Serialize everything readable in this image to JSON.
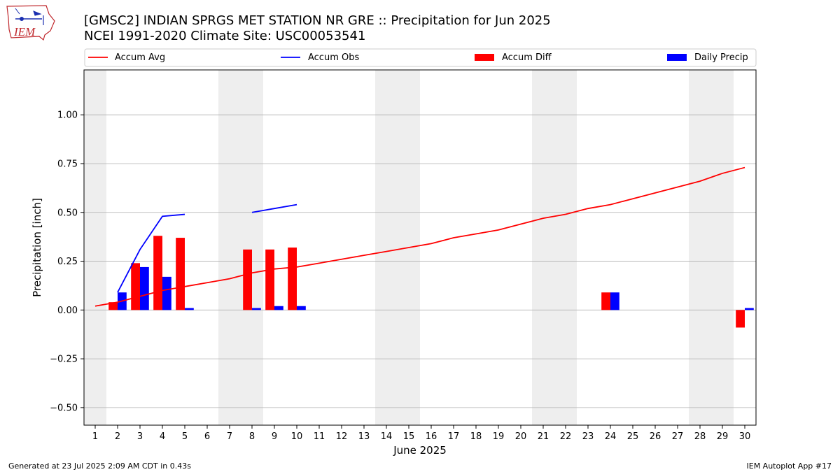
{
  "header": {
    "title_line1": "[GMSC2] INDIAN  SPRGS MET STATION NR GRE :: Precipitation for Jun 2025",
    "title_line2": "NCEI 1991-2020 Climate Site: USC00053541"
  },
  "logo": {
    "text": "IEM"
  },
  "footer": {
    "left": "Generated at 23 Jul 2025 2:09 AM CDT in 0.43s",
    "right": "IEM Autoplot App #17"
  },
  "colors": {
    "avg": "#ff0000",
    "obs": "#0000ff",
    "diff": "#ff0000",
    "daily": "#0000ff",
    "weekend": "#eeeeee",
    "grid": "#b0b0b0"
  },
  "chart_data": {
    "type": "bar",
    "xlabel": "June 2025",
    "ylabel": "Precipitation [inch]",
    "ylim": [
      -0.59,
      1.23
    ],
    "xlim": [
      0.5,
      30.5
    ],
    "grid": true,
    "legend_position": "top",
    "x": [
      1,
      2,
      3,
      4,
      5,
      6,
      7,
      8,
      9,
      10,
      11,
      12,
      13,
      14,
      15,
      16,
      17,
      18,
      19,
      20,
      21,
      22,
      23,
      24,
      25,
      26,
      27,
      28,
      29,
      30
    ],
    "xticks": [
      "1",
      "2",
      "3",
      "4",
      "5",
      "6",
      "7",
      "8",
      "9",
      "10",
      "11",
      "12",
      "13",
      "14",
      "15",
      "16",
      "17",
      "18",
      "19",
      "20",
      "21",
      "22",
      "23",
      "24",
      "25",
      "26",
      "27",
      "28",
      "29",
      "30"
    ],
    "yticks": [
      -0.5,
      -0.25,
      0.0,
      0.25,
      0.5,
      0.75,
      1.0
    ],
    "ytick_labels": [
      "−0.50",
      "−0.25",
      "0.00",
      "0.25",
      "0.50",
      "0.75",
      "1.00"
    ],
    "weekend_spans": [
      [
        0.5,
        1.5
      ],
      [
        6.5,
        8.5
      ],
      [
        13.5,
        15.5
      ],
      [
        20.5,
        22.5
      ],
      [
        27.5,
        29.5
      ]
    ],
    "series": [
      {
        "name": "Accum Avg",
        "kind": "line",
        "values": [
          0.02,
          0.04,
          0.07,
          0.1,
          0.12,
          0.14,
          0.16,
          0.19,
          0.21,
          0.22,
          0.24,
          0.26,
          0.28,
          0.3,
          0.32,
          0.34,
          0.37,
          0.39,
          0.41,
          0.44,
          0.47,
          0.49,
          0.52,
          0.54,
          0.57,
          0.6,
          0.63,
          0.66,
          0.7,
          0.73
        ]
      },
      {
        "name": "Accum Obs",
        "kind": "line",
        "values": [
          null,
          0.09,
          0.31,
          0.48,
          0.49,
          null,
          null,
          0.5,
          0.52,
          0.54,
          null,
          null,
          null,
          null,
          null,
          null,
          null,
          null,
          null,
          null,
          null,
          null,
          null,
          null,
          null,
          null,
          null,
          null,
          null,
          null
        ]
      },
      {
        "name": "Accum Diff",
        "kind": "bar",
        "values": [
          null,
          0.04,
          0.24,
          0.38,
          0.37,
          null,
          null,
          0.31,
          0.31,
          0.32,
          null,
          null,
          null,
          null,
          null,
          null,
          null,
          null,
          null,
          null,
          null,
          null,
          null,
          0.09,
          null,
          null,
          null,
          null,
          null,
          -0.09
        ]
      },
      {
        "name": "Daily Precip",
        "kind": "bar",
        "values": [
          null,
          0.09,
          0.22,
          0.17,
          0.01,
          null,
          null,
          0.01,
          0.02,
          0.02,
          null,
          null,
          null,
          null,
          null,
          null,
          null,
          null,
          null,
          null,
          null,
          null,
          null,
          0.09,
          null,
          null,
          null,
          null,
          null,
          0.01
        ]
      }
    ]
  }
}
